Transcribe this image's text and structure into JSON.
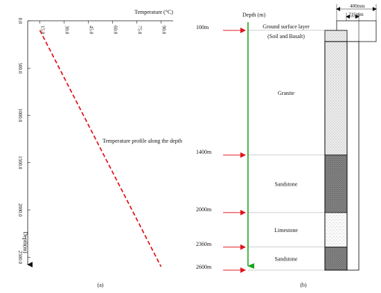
{
  "panel_a": {
    "x_axis_title": "Temperature (°C)",
    "y_axis_title": "Depth(m)",
    "x_ticks": [
      "15.0",
      "30.0",
      "45.0",
      "60.0",
      "75.0",
      "90.0"
    ],
    "y_ticks": [
      "0.0",
      "500.0",
      "1000.0",
      "1500.0",
      "2000.0",
      "2500.0"
    ],
    "annotation": "Temperature profile along the depth",
    "caption": "(a)",
    "line_color": "#e0151c"
  },
  "chart_data": {
    "type": "line",
    "title": "",
    "xlabel": "Temperature (°C)",
    "ylabel": "Depth(m)",
    "xlim": [
      7.5,
      97.5
    ],
    "ylim": [
      2600,
      0
    ],
    "x_position": "top",
    "y_inverted": true,
    "grid": false,
    "series": [
      {
        "name": "Temperature profile along the depth",
        "style": "dashed",
        "color": "#e0151c",
        "x": [
          15.0,
          90.0
        ],
        "y": [
          100,
          2600
        ]
      }
    ]
  },
  "panel_b": {
    "depth_title": "Depth (m)",
    "caption": "(b)",
    "dimensions": {
      "outer": "400mm",
      "inner": "216mm"
    },
    "arrow_color": "#e0151c",
    "axis_color": "#1aa31a",
    "depth_markers": [
      {
        "label": "100m",
        "depth": 100
      },
      {
        "label": "1400m",
        "depth": 1400
      },
      {
        "label": "2000m",
        "depth": 2000
      },
      {
        "label": "2360m",
        "depth": 2360
      },
      {
        "label": "2600m",
        "depth": 2600
      }
    ],
    "layers": [
      {
        "name": "Ground surface layer",
        "name2": "(Soil and Basalt)",
        "top": 0,
        "bottom": 100,
        "fill": "none"
      },
      {
        "name": "Granite",
        "name2": "",
        "top": 100,
        "bottom": 1400,
        "fill": "granite"
      },
      {
        "name": "Sandstone",
        "name2": "",
        "top": 1400,
        "bottom": 2000,
        "fill": "sand"
      },
      {
        "name": "Limestone",
        "name2": "",
        "top": 2000,
        "bottom": 2360,
        "fill": "lime"
      },
      {
        "name": "Sandstone",
        "name2": "",
        "top": 2360,
        "bottom": 2600,
        "fill": "sand"
      }
    ]
  }
}
